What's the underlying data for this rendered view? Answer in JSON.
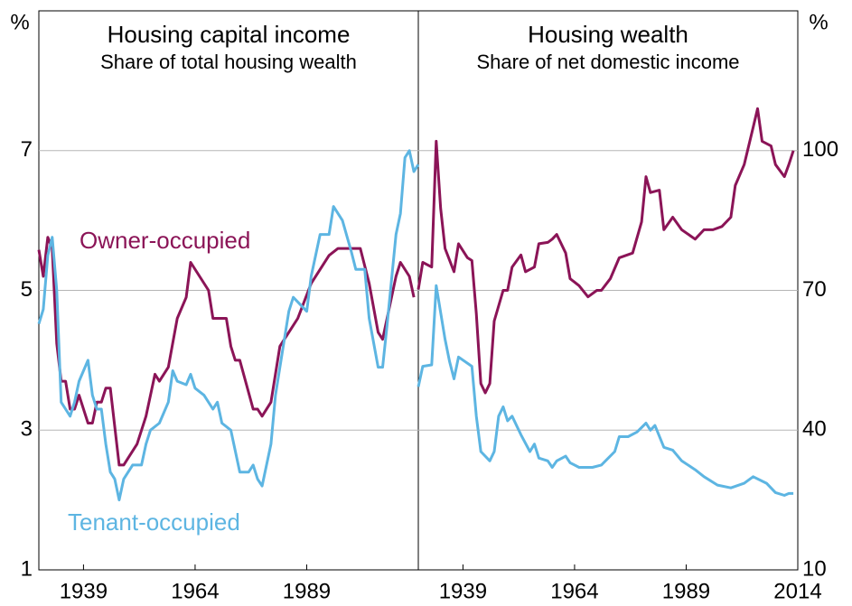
{
  "chart_data": [
    {
      "type": "line",
      "title": "Housing capital income",
      "subtitle": "Share of total housing wealth",
      "y_unit": "%",
      "xlim": [
        1929,
        2014
      ],
      "xticks": [
        1939,
        1964,
        1989
      ],
      "ylim": [
        1,
        9
      ],
      "yticks": [
        1,
        3,
        5,
        7
      ],
      "grid": true,
      "series": [
        {
          "name": "Owner-occupied",
          "color": "#8b1457",
          "x": [
            1929,
            1930,
            1931,
            1932,
            1933,
            1934,
            1935,
            1936,
            1937,
            1938,
            1940,
            1941,
            1942,
            1943,
            1944,
            1945,
            1947,
            1948,
            1951,
            1953,
            1955,
            1956,
            1958,
            1960,
            1962,
            1963,
            1965,
            1967,
            1968,
            1971,
            1972,
            1973,
            1974,
            1977,
            1978,
            1979,
            1981,
            1983,
            1985,
            1987,
            1990,
            1992,
            1994,
            1996,
            2001,
            2003,
            2005,
            2006,
            2009,
            2010,
            2012,
            2013
          ],
          "values": [
            5.58,
            5.2,
            5.76,
            5.6,
            4.24,
            3.7,
            3.7,
            3.3,
            3.3,
            3.5,
            3.1,
            3.1,
            3.4,
            3.4,
            3.6,
            3.6,
            2.5,
            2.5,
            2.8,
            3.2,
            3.8,
            3.7,
            3.9,
            4.6,
            4.9,
            5.4,
            5.2,
            5.0,
            4.6,
            4.6,
            4.2,
            4.0,
            4.0,
            3.3,
            3.3,
            3.2,
            3.4,
            4.2,
            4.4,
            4.6,
            5.1,
            5.3,
            5.5,
            5.6,
            5.6,
            5.1,
            4.4,
            4.3,
            5.2,
            5.4,
            5.2,
            4.9
          ]
        },
        {
          "name": "Tenant-occupied",
          "color": "#5db5e2",
          "x": [
            1929,
            1930,
            1931,
            1932,
            1933,
            1934,
            1935,
            1936,
            1937,
            1938,
            1940,
            1941,
            1942,
            1943,
            1944,
            1945,
            1946,
            1947,
            1948,
            1950,
            1952,
            1953,
            1954,
            1956,
            1958,
            1959,
            1960,
            1962,
            1963,
            1964,
            1966,
            1968,
            1969,
            1970,
            1972,
            1974,
            1976,
            1977,
            1978,
            1979,
            1981,
            1982,
            1983,
            1985,
            1986,
            1989,
            1990,
            1992,
            1994,
            1995,
            1997,
            1999,
            2000,
            2002,
            2003,
            2005,
            2006,
            2007,
            2009,
            2010,
            2011,
            2012,
            2013,
            2014
          ],
          "values": [
            4.52,
            4.73,
            5.5,
            5.76,
            5.0,
            3.4,
            3.3,
            3.2,
            3.4,
            3.7,
            4.0,
            3.5,
            3.3,
            3.3,
            2.8,
            2.4,
            2.3,
            2.0,
            2.3,
            2.5,
            2.5,
            2.8,
            3.0,
            3.1,
            3.4,
            3.85,
            3.7,
            3.65,
            3.8,
            3.6,
            3.5,
            3.3,
            3.4,
            3.1,
            3.0,
            2.4,
            2.4,
            2.5,
            2.3,
            2.2,
            2.8,
            3.5,
            3.9,
            4.7,
            4.9,
            4.7,
            5.2,
            5.8,
            5.8,
            6.2,
            6.0,
            5.55,
            5.3,
            5.3,
            4.6,
            3.9,
            3.9,
            4.5,
            5.8,
            6.1,
            6.9,
            7.0,
            6.7,
            6.8
          ]
        }
      ]
    },
    {
      "type": "line",
      "title": "Housing wealth",
      "subtitle": "Share of net domestic income",
      "y_unit": "%",
      "xlim": [
        1929,
        2014
      ],
      "xticks": [
        1939,
        1964,
        1989,
        2014
      ],
      "ylim": [
        10,
        130
      ],
      "yticks": [
        10,
        40,
        70,
        100
      ],
      "grid": true,
      "series": [
        {
          "color": "#8b1457",
          "x": [
            1929,
            1930,
            1932,
            1933,
            1934,
            1935,
            1937,
            1938,
            1940,
            1941,
            1942,
            1943,
            1944,
            1945,
            1946,
            1948,
            1949,
            1950,
            1952,
            1953,
            1955,
            1956,
            1958,
            1959,
            1960,
            1962,
            1963,
            1965,
            1967,
            1969,
            1970,
            1972,
            1974,
            1977,
            1979,
            1980,
            1981,
            1983,
            1984,
            1986,
            1988,
            1991,
            1993,
            1995,
            1997,
            1999,
            2000,
            2002,
            2004,
            2005,
            2006,
            2008,
            2009,
            2011,
            2012,
            2013
          ],
          "values": [
            70.2,
            76,
            75,
            102,
            87.6,
            79,
            74,
            80,
            77,
            76.4,
            65,
            50,
            48,
            50,
            63.4,
            70,
            70,
            75,
            77.6,
            74,
            75,
            80,
            80.3,
            81,
            82,
            78,
            72.5,
            71,
            68.6,
            70,
            70,
            72.5,
            77,
            78,
            84.7,
            94.4,
            91,
            91.5,
            83,
            85.7,
            83,
            81,
            83,
            83,
            83.7,
            85.7,
            92.5,
            97,
            105,
            109,
            102,
            101,
            97,
            94.4,
            97,
            100
          ]
        },
        {
          "color": "#5db5e2",
          "x": [
            1929,
            1930,
            1932,
            1933,
            1935,
            1936,
            1937,
            1938,
            1941,
            1942,
            1943,
            1945,
            1946,
            1947,
            1948,
            1949,
            1950,
            1952,
            1954,
            1955,
            1956,
            1958,
            1959,
            1960,
            1962,
            1963,
            1965,
            1968,
            1970,
            1973,
            1974,
            1976,
            1978,
            1980,
            1981,
            1982,
            1984,
            1986,
            1988,
            1991,
            1993,
            1996,
            1999,
            2002,
            2004,
            2007,
            2009,
            2011,
            2012,
            2013
          ],
          "values": [
            49.3,
            53.7,
            54,
            71,
            59.5,
            54.7,
            51,
            55.7,
            53.7,
            43,
            35.4,
            33.4,
            35.4,
            43,
            45,
            42,
            43,
            39,
            35.4,
            37,
            34,
            33.4,
            32,
            33.4,
            34.4,
            33,
            32,
            32,
            32.5,
            35.4,
            38.6,
            38.6,
            39.6,
            41.5,
            40,
            41,
            36.3,
            35.7,
            33.4,
            31.5,
            30,
            28.2,
            27.6,
            28.6,
            30,
            28.6,
            26.6,
            26,
            26.4,
            26.4
          ]
        }
      ]
    }
  ]
}
